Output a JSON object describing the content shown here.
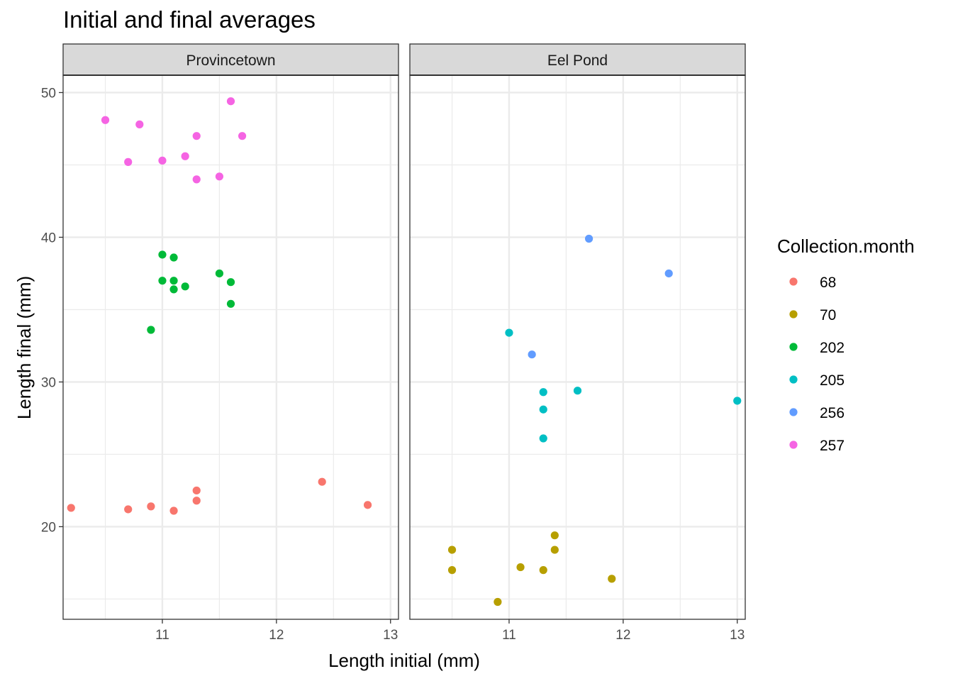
{
  "chart_data": {
    "type": "scatter",
    "title": "Initial and final averages",
    "xlabel": "Length initial (mm)",
    "ylabel": "Length final (mm)",
    "xlim": [
      10.13,
      13.07
    ],
    "ylim": [
      13.6,
      51.2
    ],
    "x_ticks": [
      "11",
      "12",
      "13"
    ],
    "y_ticks": [
      "20",
      "30",
      "40",
      "50"
    ],
    "legend": {
      "title": "Collection.month",
      "position": "right",
      "entries": [
        {
          "label": "68",
          "color": "#F8766D"
        },
        {
          "label": "70",
          "color": "#B79F00"
        },
        {
          "label": "202",
          "color": "#00BA38"
        },
        {
          "label": "205",
          "color": "#00BFC4"
        },
        {
          "label": "256",
          "color": "#619CFF"
        },
        {
          "label": "257",
          "color": "#F564E3"
        }
      ]
    },
    "panels": [
      {
        "name": "Provincetown",
        "series": [
          {
            "name": "68",
            "points": [
              [
                10.2,
                21.3
              ],
              [
                10.7,
                21.2
              ],
              [
                10.9,
                21.4
              ],
              [
                11.1,
                21.1
              ],
              [
                11.3,
                22.5
              ],
              [
                11.3,
                21.8
              ],
              [
                12.4,
                23.1
              ],
              [
                12.8,
                21.5
              ]
            ]
          },
          {
            "name": "202",
            "points": [
              [
                10.9,
                33.6
              ],
              [
                11.0,
                38.8
              ],
              [
                11.1,
                38.6
              ],
              [
                11.0,
                37.0
              ],
              [
                11.1,
                37.0
              ],
              [
                11.1,
                36.4
              ],
              [
                11.2,
                36.6
              ],
              [
                11.5,
                37.5
              ],
              [
                11.6,
                36.9
              ],
              [
                11.6,
                35.4
              ]
            ]
          },
          {
            "name": "257",
            "points": [
              [
                10.5,
                48.1
              ],
              [
                10.8,
                47.8
              ],
              [
                10.7,
                45.2
              ],
              [
                11.0,
                45.3
              ],
              [
                11.2,
                45.6
              ],
              [
                11.3,
                47.0
              ],
              [
                11.3,
                44.0
              ],
              [
                11.5,
                44.2
              ],
              [
                11.6,
                49.4
              ],
              [
                11.7,
                47.0
              ]
            ]
          }
        ]
      },
      {
        "name": "Eel Pond",
        "series": [
          {
            "name": "70",
            "points": [
              [
                10.5,
                18.4
              ],
              [
                10.5,
                17.0
              ],
              [
                10.9,
                14.8
              ],
              [
                11.1,
                17.2
              ],
              [
                11.3,
                17.0
              ],
              [
                11.4,
                19.4
              ],
              [
                11.4,
                18.4
              ],
              [
                11.9,
                16.4
              ]
            ]
          },
          {
            "name": "205",
            "points": [
              [
                11.0,
                33.4
              ],
              [
                11.3,
                29.3
              ],
              [
                11.3,
                28.1
              ],
              [
                11.3,
                26.1
              ],
              [
                11.6,
                29.4
              ],
              [
                13.0,
                28.7
              ]
            ]
          },
          {
            "name": "256",
            "points": [
              [
                11.2,
                31.9
              ],
              [
                11.7,
                39.9
              ],
              [
                12.4,
                37.5
              ]
            ]
          }
        ]
      }
    ]
  }
}
